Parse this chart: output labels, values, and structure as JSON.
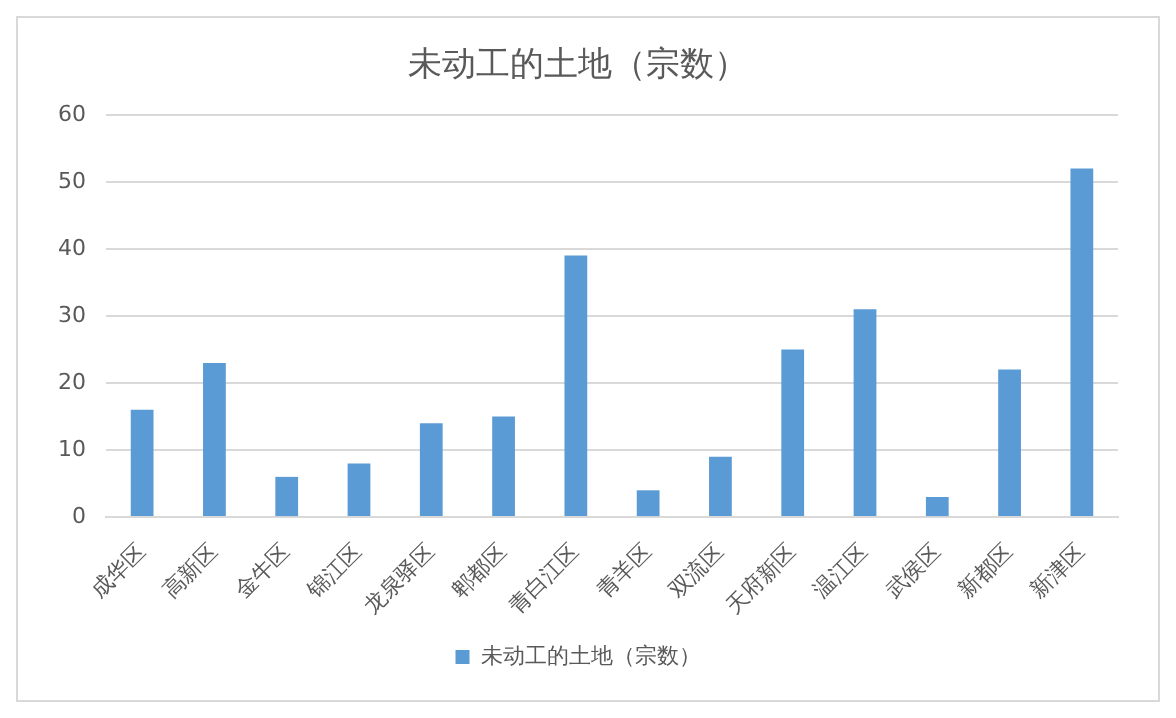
{
  "chart_data": {
    "type": "bar",
    "title": "未动工的土地（宗数）",
    "categories": [
      "成华区",
      "高新区",
      "金牛区",
      "锦江区",
      "龙泉驿区",
      "郫都区",
      "青白江区",
      "青羊区",
      "双流区",
      "天府新区",
      "温江区",
      "武侯区",
      "新都区",
      "新津区"
    ],
    "series": [
      {
        "name": "未动工的土地（宗数）",
        "color": "#5b9bd5",
        "values": [
          16,
          23,
          6,
          8,
          14,
          15,
          39,
          4,
          9,
          25,
          31,
          3,
          22,
          52
        ]
      }
    ],
    "ylim": [
      0,
      60
    ],
    "yticks": [
      0,
      10,
      20,
      30,
      40,
      50,
      60
    ],
    "grid": "y",
    "legend": "bottom"
  }
}
